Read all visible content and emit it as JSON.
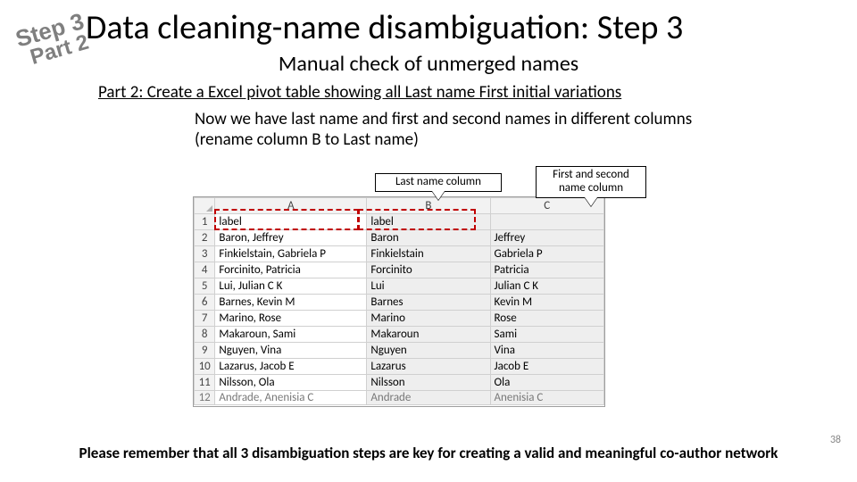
{
  "stamp": {
    "line1": "Step 3",
    "line2": "Part 2"
  },
  "title": "Data cleaning-name disambiguation: Step 3",
  "subtitle": "Manual check of unmerged names",
  "part2_heading": "Part 2: Create a Excel pivot table showing all Last name First initial variations",
  "body_l1": "Now we have last name and first and second names in different columns",
  "body_l2": "(rename column B to Last name)",
  "callout_a": "Last name column",
  "callout_b": "First and second name column",
  "sheet": {
    "col_headers": [
      "A",
      "B",
      "C"
    ],
    "rows": [
      {
        "n": "1",
        "a": "label",
        "b": "label",
        "c": ""
      },
      {
        "n": "2",
        "a": "Baron, Jeffrey",
        "b": "Baron",
        "c": "Jeffrey"
      },
      {
        "n": "3",
        "a": "Finkielstain, Gabriela P",
        "b": "Finkielstain",
        "c": "Gabriela P"
      },
      {
        "n": "4",
        "a": "Forcinito, Patricia",
        "b": "Forcinito",
        "c": "Patricia"
      },
      {
        "n": "5",
        "a": "Lui, Julian C K",
        "b": "Lui",
        "c": "Julian C K"
      },
      {
        "n": "6",
        "a": "Barnes, Kevin M",
        "b": "Barnes",
        "c": "Kevin M"
      },
      {
        "n": "7",
        "a": "Marino, Rose",
        "b": "Marino",
        "c": "Rose"
      },
      {
        "n": "8",
        "a": "Makaroun, Sami",
        "b": "Makaroun",
        "c": "Sami"
      },
      {
        "n": "9",
        "a": "Nguyen, Vina",
        "b": "Nguyen",
        "c": "Vina"
      },
      {
        "n": "10",
        "a": "Lazarus, Jacob E",
        "b": "Lazarus",
        "c": "Jacob E"
      },
      {
        "n": "11",
        "a": "Nilsson, Ola",
        "b": "Nilsson",
        "c": "Ola"
      },
      {
        "n": "12",
        "a": "Andrade, Anenisia C",
        "b": "Andrade",
        "c": "Anenisia C"
      }
    ]
  },
  "footer": "Please remember that all 3 disambiguation steps are key for creating a valid and meaningful co-author network",
  "page_number": "38"
}
